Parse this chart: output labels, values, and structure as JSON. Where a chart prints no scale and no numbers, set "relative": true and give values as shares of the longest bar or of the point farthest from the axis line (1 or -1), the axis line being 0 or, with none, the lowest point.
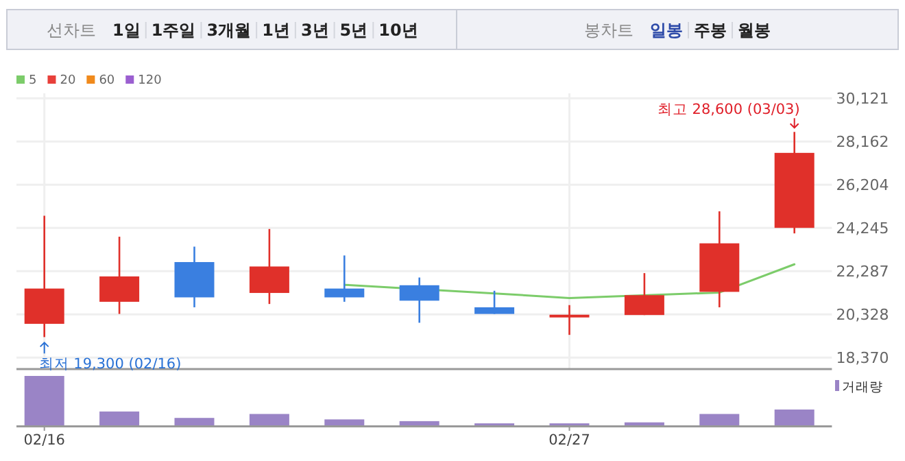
{
  "chart_data": [
    {
      "type": "other",
      "annotations": [
        "선차트",
        "1일",
        "1주일",
        "3개월",
        "1년",
        "3년",
        "5년",
        "10년"
      ]
    },
    {
      "type": "other",
      "annotations": [
        "봉차트",
        "일봉",
        "주봉",
        "월봉"
      ]
    },
    {
      "type": "candlestick",
      "categories": [
        "02/16",
        null,
        null,
        null,
        null,
        null,
        null,
        "02/27",
        null,
        null,
        null
      ],
      "ohlc": [
        [
          19900,
          24800,
          19300,
          21500
        ],
        [
          20900,
          23850,
          20350,
          22050
        ],
        [
          22700,
          23400,
          20650,
          21100
        ],
        [
          21300,
          24200,
          20800,
          22500
        ],
        [
          21500,
          23000,
          20900,
          21100
        ],
        [
          21650,
          22000,
          19950,
          20950
        ],
        [
          20650,
          21400,
          20350,
          20350
        ],
        [
          20250,
          20750,
          19400,
          20250
        ],
        [
          20300,
          22200,
          20300,
          21200
        ],
        [
          21350,
          25000,
          20650,
          23550
        ],
        [
          24250,
          28600,
          24000,
          27650
        ]
      ],
      "colors": [
        "#e0302a",
        "#e0302a",
        "#3a7fe0",
        "#e0302a",
        "#3a7fe0",
        "#3a7fe0",
        "#3a7fe0",
        "#e0302a",
        "#e0302a",
        "#e0302a",
        "#e0302a"
      ],
      "series": [
        {
          "name": "5",
          "type": "line",
          "color": "#7ccc6a",
          "values": [
            null,
            null,
            null,
            null,
            21670,
            null,
            21280,
            21070,
            null,
            21320,
            22600
          ]
        },
        {
          "name": "20",
          "type": "line",
          "color": "#e8403a",
          "values": [
            null,
            null,
            null,
            null,
            null,
            null,
            null,
            null,
            null,
            null,
            null
          ]
        },
        {
          "name": "60",
          "type": "line",
          "color": "#f08a1c",
          "values": [
            null,
            null,
            null,
            null,
            null,
            null,
            null,
            null,
            null,
            null,
            null
          ]
        },
        {
          "name": "120",
          "type": "line",
          "color": "#9b5fd0",
          "values": [
            null,
            null,
            null,
            null,
            null,
            null,
            null,
            null,
            null,
            null,
            null
          ]
        }
      ],
      "ylim": [
        17850,
        30350
      ],
      "yticks": [
        {
          "value": 18370,
          "label": "18,370"
        },
        {
          "value": 20328,
          "label": "20,328"
        },
        {
          "value": 22287,
          "label": "22,287"
        },
        {
          "value": 24245,
          "label": "24,245"
        },
        {
          "value": 26204,
          "label": "26,204"
        },
        {
          "value": 28162,
          "label": "28,162"
        },
        {
          "value": 30121,
          "label": "30,121"
        }
      ],
      "grid": true,
      "legend": "top left",
      "tick_labels": "y",
      "annotations": [
        {
          "text": "최저 19,300 (02/16)",
          "x": "02/16",
          "y": 19300
        },
        "최고 28,600 (03/03)"
      ]
    },
    {
      "type": "bar",
      "categories": [
        "02/16",
        null,
        null,
        null,
        null,
        null,
        null,
        "02/27",
        null,
        null,
        null
      ],
      "series": [
        {
          "name": "거래량",
          "color": "#9a84c6",
          "values": [
            1,
            0.28,
            0.15,
            0.23,
            0.12,
            0.085,
            0.04,
            0.04,
            0.06,
            0.23,
            0.32
          ]
        }
      ],
      "relative": true,
      "legend": "top right",
      "tick_labels": "x"
    }
  ]
}
